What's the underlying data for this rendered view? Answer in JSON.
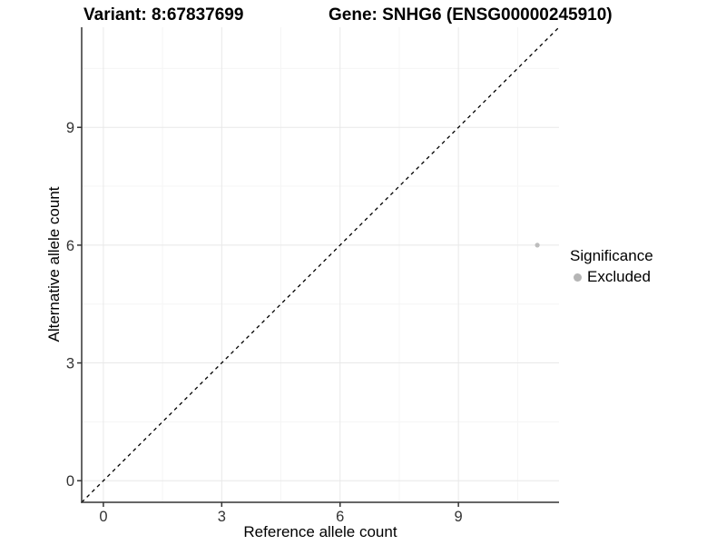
{
  "chart_data": {
    "type": "scatter",
    "title_left": "Variant: 8:67837699",
    "title_right": "Gene: SNHG6 (ENSG00000245910)",
    "xlabel": "Reference allele count",
    "ylabel": "Alternative allele count",
    "xlim": [
      -0.55,
      11.55
    ],
    "ylim": [
      -0.55,
      11.55
    ],
    "x_major_ticks": [
      0,
      3,
      6,
      9
    ],
    "y_major_ticks": [
      0,
      3,
      6,
      9
    ],
    "x_minor_gridlines": [
      1.5,
      4.5,
      7.5,
      10.5
    ],
    "y_minor_gridlines": [
      1.5,
      4.5,
      7.5,
      10.5
    ],
    "grid": "major-and-minor",
    "reference_line": {
      "type": "identity-diagonal",
      "style": "dashed",
      "color": "#000000"
    },
    "series": [
      {
        "name": "Excluded",
        "color": "#bdbdbd",
        "points": [
          {
            "x": 11,
            "y": 6
          }
        ]
      }
    ],
    "legend": {
      "title": "Significance",
      "position": "right",
      "entries": [
        {
          "label": "Excluded",
          "color": "#b5b5b5"
        }
      ]
    },
    "colors": {
      "background": "#ffffff",
      "grid_major": "#e8e8e8",
      "grid_minor": "#f5f5f5",
      "axis": "#333333",
      "tick_label": "#333333"
    }
  }
}
